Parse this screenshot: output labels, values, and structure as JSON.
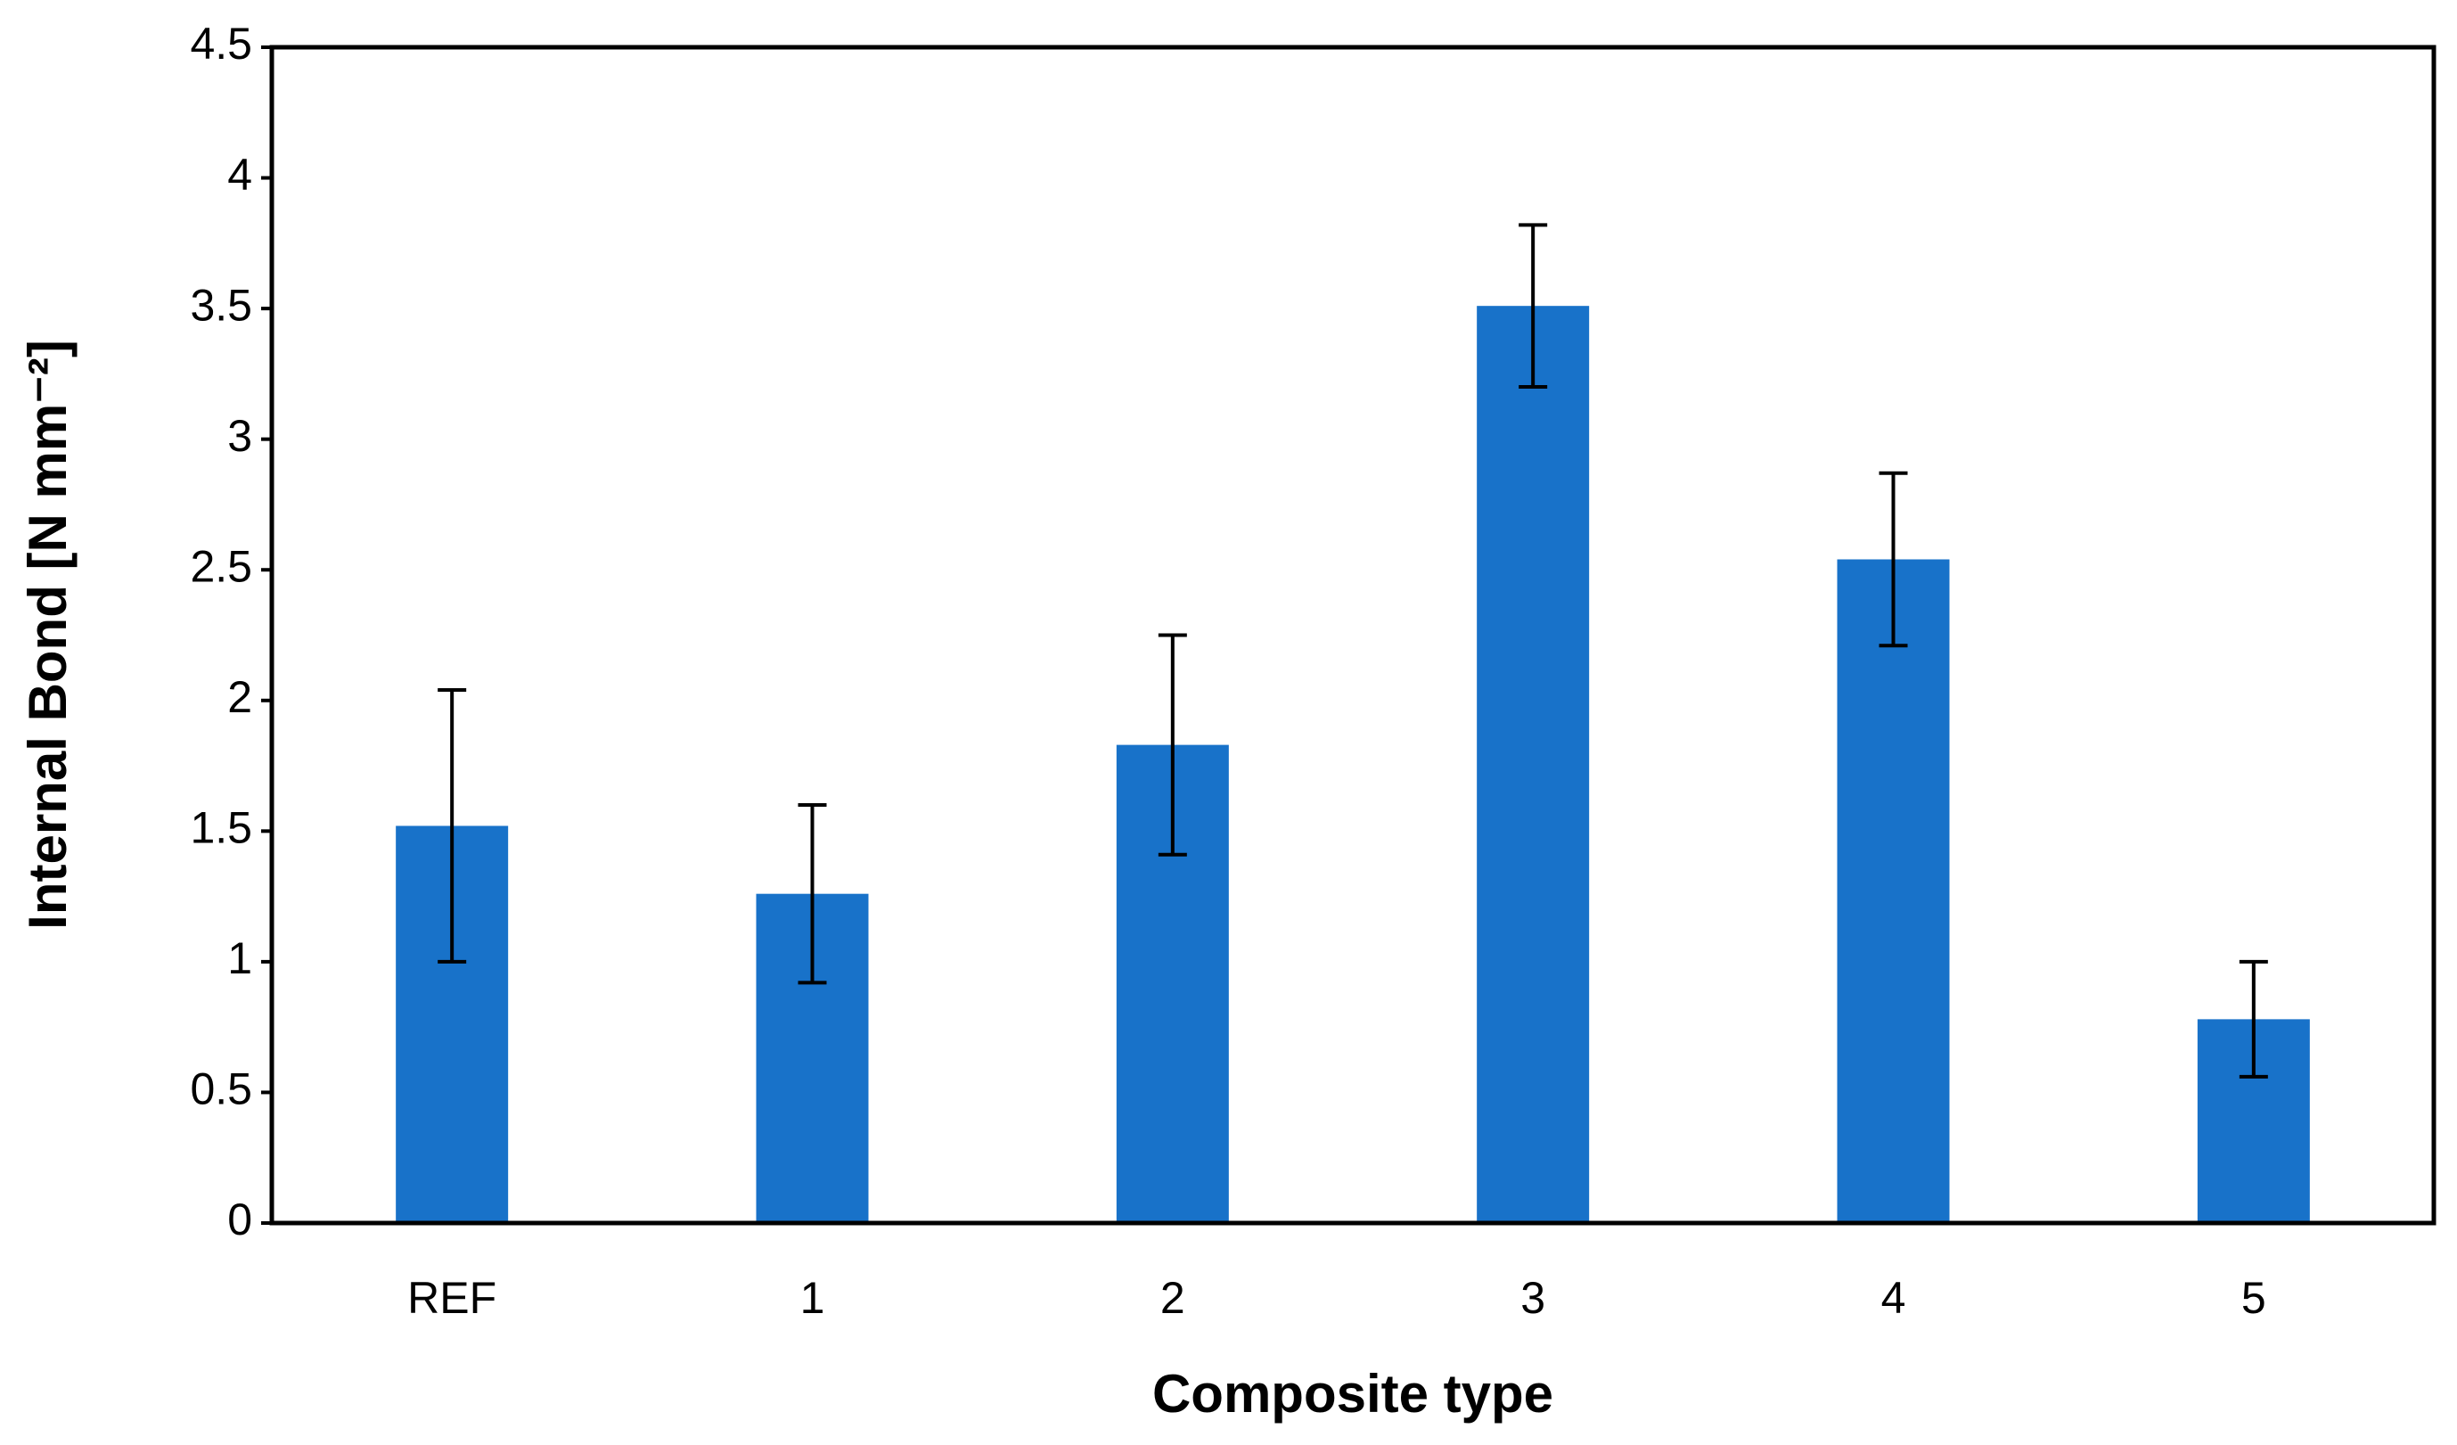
{
  "chart_data": {
    "type": "bar",
    "x_label": "Composite type",
    "y_label": "Internal Bond [N mm⁻²]",
    "categories": [
      "REF",
      "1",
      "2",
      "3",
      "4",
      "5"
    ],
    "values": [
      1.52,
      1.26,
      1.83,
      3.51,
      2.54,
      0.78
    ],
    "errors": [
      0.52,
      0.34,
      0.42,
      0.31,
      0.33,
      0.22
    ],
    "color": "#1872c9",
    "ylim": [
      0,
      4.5
    ],
    "yticks": [
      0,
      0.5,
      1,
      1.5,
      2,
      2.5,
      3,
      3.5,
      4,
      4.5
    ],
    "grid": false
  }
}
